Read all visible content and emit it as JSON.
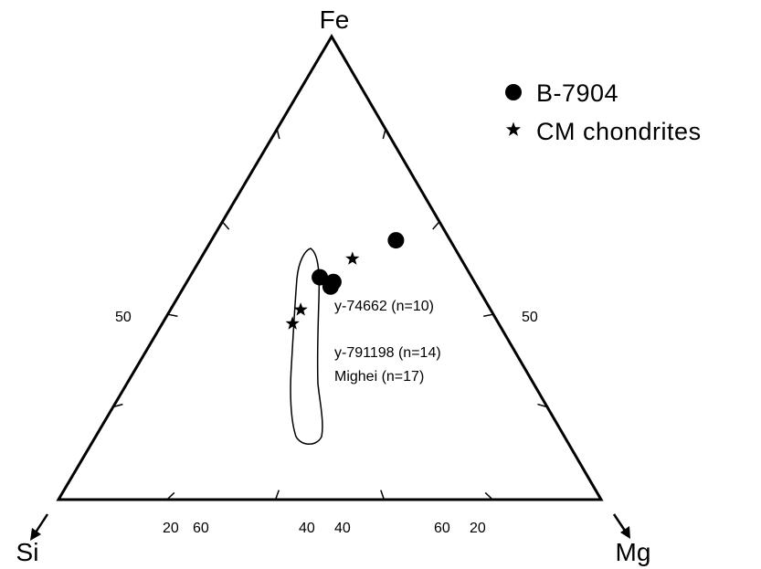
{
  "chart_data": {
    "type": "scatter",
    "subtype": "ternary",
    "apices": {
      "top": "Fe",
      "left": "Si",
      "right": "Mg"
    },
    "legend": [
      {
        "label": "B-7904",
        "marker": "circle"
      },
      {
        "label": "CM chondrites",
        "marker": "star"
      }
    ],
    "legend_position": "top-right",
    "series": [
      {
        "name": "B-7904",
        "marker": "circle",
        "points": [
          {
            "Fe": 56,
            "Mg": 34,
            "Si": 10
          },
          {
            "Fe": 48,
            "Mg": 24,
            "Si": 28
          },
          {
            "Fe": 47,
            "Mg": 27,
            "Si": 26
          },
          {
            "Fe": 46,
            "Mg": 27,
            "Si": 27
          }
        ]
      },
      {
        "name": "CM chondrites",
        "marker": "star",
        "points": [
          {
            "label": "y-74662 (n=10)",
            "Fe": 52,
            "Mg": 28,
            "Si": 20
          },
          {
            "label": "y-791198 (n=14)",
            "Fe": 41,
            "Mg": 24,
            "Si": 35
          },
          {
            "label": "Mighei (n=17)",
            "Fe": 38,
            "Mg": 24,
            "Si": 38
          }
        ]
      }
    ],
    "tick_labels": {
      "left_edge": [
        "50"
      ],
      "right_edge": [
        "50"
      ],
      "bottom_edge": [
        "20",
        "60",
        "40",
        "40",
        "60",
        "20"
      ]
    },
    "annotations": [
      "y-74662 (n=10)",
      "y-791198 (n=14)",
      "Mighei (n=17)"
    ],
    "grid": false
  }
}
